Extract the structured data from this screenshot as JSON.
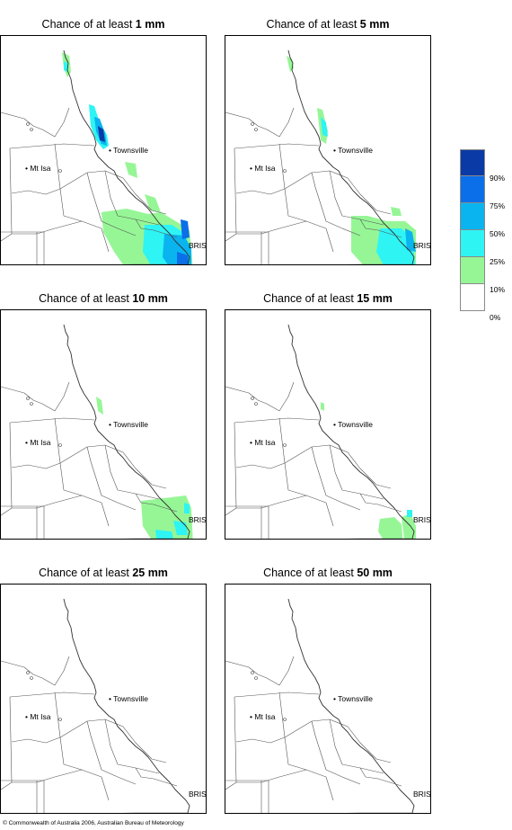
{
  "title_prefix": "Chance of at least",
  "panels": [
    {
      "amount": "1 mm"
    },
    {
      "amount": "5 mm"
    },
    {
      "amount": "10 mm"
    },
    {
      "amount": "15 mm"
    },
    {
      "amount": "25 mm"
    },
    {
      "amount": "50 mm"
    }
  ],
  "places": {
    "mt_isa": "Mt Isa",
    "townsville": "Townsville",
    "brisbane": "BRIS"
  },
  "legend": {
    "labels": [
      "90%",
      "75%",
      "50%",
      "25%",
      "10%",
      "0%"
    ],
    "colors": [
      "#0a3aa6",
      "#0a6fe8",
      "#0ab4ef",
      "#2ef4f4",
      "#96f696",
      "#ffffff"
    ]
  },
  "copyright": "© Commonwealth of Australia 2006, Australian Bureau of Meteorology"
}
